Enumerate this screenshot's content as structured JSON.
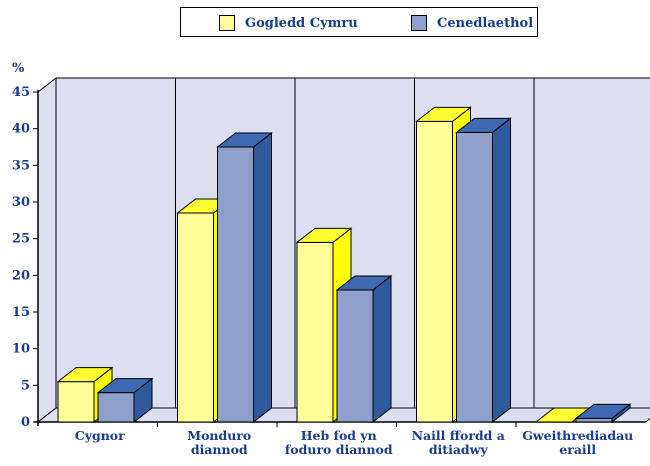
{
  "chart_data": {
    "type": "bar",
    "ylabel": "%",
    "ylim": [
      0,
      45
    ],
    "yticks": [
      0,
      5,
      10,
      15,
      20,
      25,
      30,
      35,
      40,
      45
    ],
    "categories": [
      [
        "Cygnor"
      ],
      [
        "Monduro",
        "diannod"
      ],
      [
        "Heb fod yn",
        "foduro diannod"
      ],
      [
        "Naill ffordd a",
        "ditiadwy"
      ],
      [
        "Gweithrediadau",
        "eraill"
      ]
    ],
    "series": [
      {
        "name": "Gogledd Cymru",
        "values": [
          5.5,
          28.5,
          24.5,
          41,
          0
        ],
        "color": "#ffff99",
        "top_color": "#ffff33",
        "side_color": "#ffff00"
      },
      {
        "name": "Cenedlaethol",
        "values": [
          4,
          37.5,
          18,
          39.5,
          0.5
        ],
        "color": "#8e9fcc",
        "top_color": "#3e69b3",
        "side_color": "#2f5a9e"
      }
    ],
    "legend_position": "top-center",
    "grid": false,
    "colors": {
      "plot_back": "#dcdff0",
      "text": "#1d3b8c",
      "axis": "#000000"
    }
  }
}
